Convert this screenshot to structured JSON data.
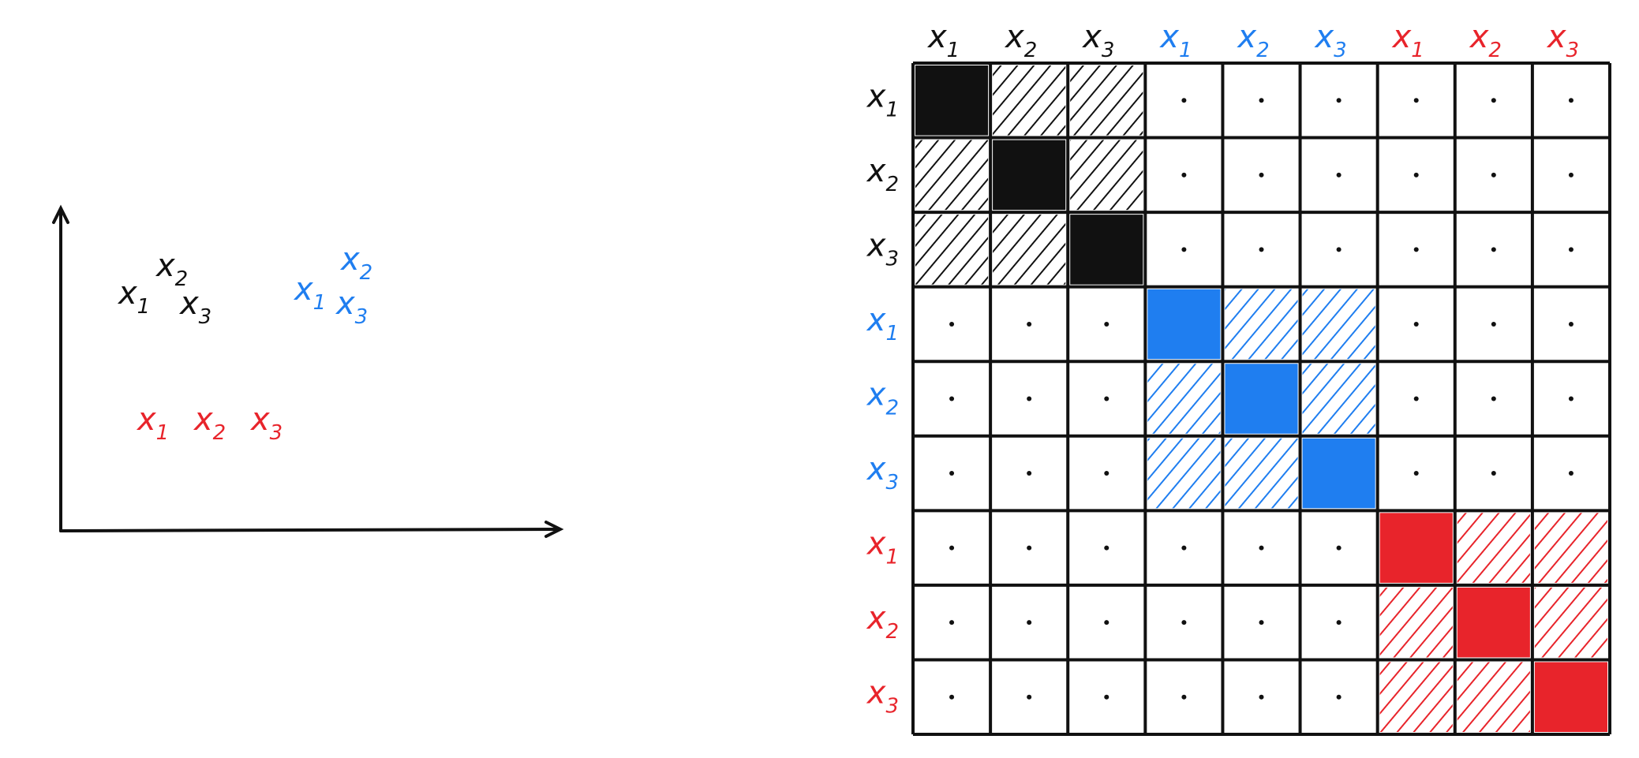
{
  "scatter": {
    "groups": [
      {
        "color": "#111111",
        "points": [
          {
            "base": "x",
            "sub": "1"
          },
          {
            "base": "x",
            "sub": "2"
          },
          {
            "base": "x",
            "sub": "3"
          }
        ]
      },
      {
        "color": "#1f7ef0",
        "points": [
          {
            "base": "x",
            "sub": "1"
          },
          {
            "base": "x",
            "sub": "2"
          },
          {
            "base": "x",
            "sub": "3"
          }
        ]
      },
      {
        "color": "#e8242b",
        "points": [
          {
            "base": "x",
            "sub": "1"
          },
          {
            "base": "x",
            "sub": "2"
          },
          {
            "base": "x",
            "sub": "3"
          }
        ]
      }
    ]
  }
}
